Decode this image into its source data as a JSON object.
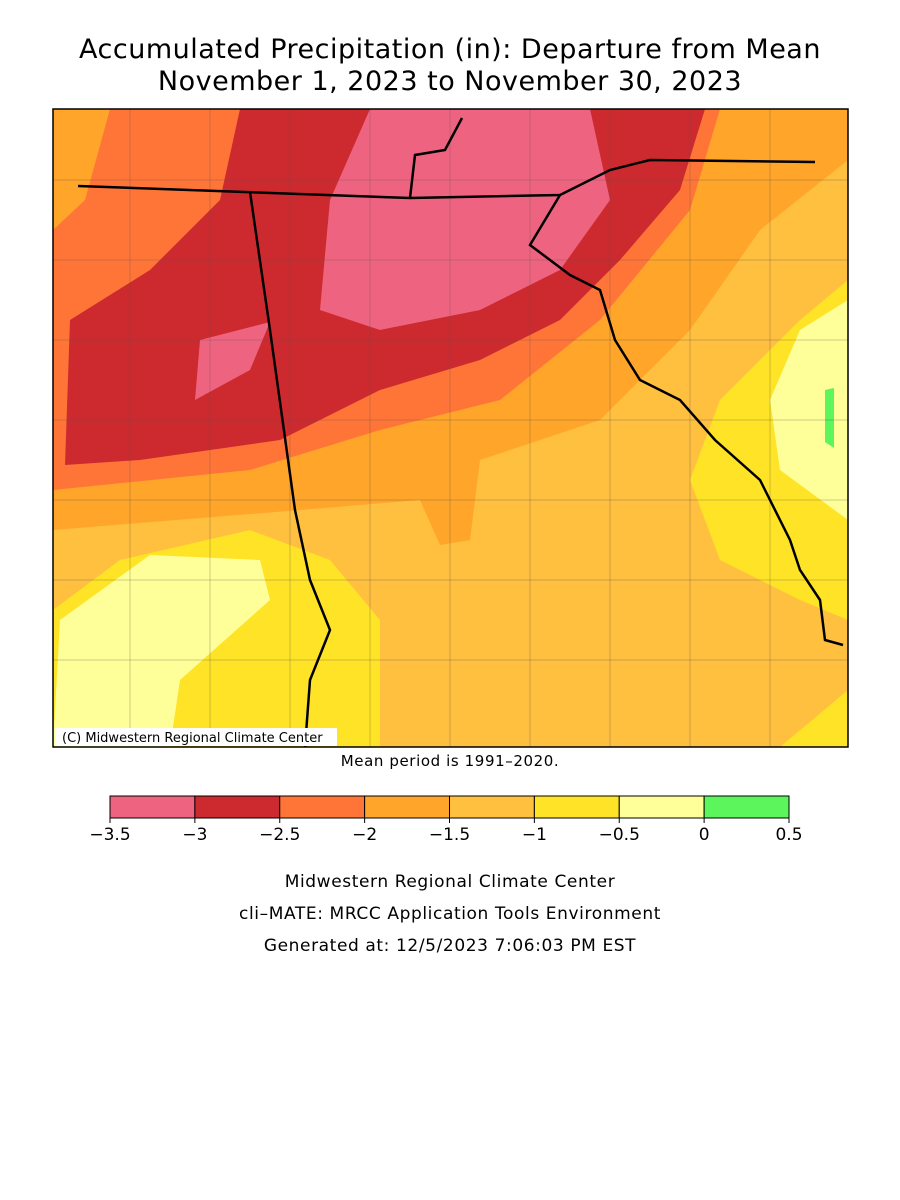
{
  "header": {
    "title_line1": "Accumulated Precipitation (in): Departure from Mean",
    "title_line2": "November 1, 2023 to November 30, 2023"
  },
  "map": {
    "credit": "(C) Midwestern Regional Climate Center",
    "note": "Mean period is 1991–2020."
  },
  "legend": {
    "ticks": [
      {
        "value": -3.5,
        "label": "−3.5"
      },
      {
        "value": -3,
        "label": "−3"
      },
      {
        "value": -2.5,
        "label": "−2.5"
      },
      {
        "value": -2,
        "label": "−2"
      },
      {
        "value": -1.5,
        "label": "−1.5"
      },
      {
        "value": -1,
        "label": "−1"
      },
      {
        "value": -0.5,
        "label": "−0.5"
      },
      0,
      0.5
    ],
    "colors": [
      "#ee6480",
      "#cc2a2e",
      "#ff7538",
      "#ffa52a",
      "#ffbf3f",
      "#ffe326",
      "#ffff99",
      "#5cf55c"
    ]
  },
  "footer": {
    "line1": "Midwestern Regional Climate Center",
    "line2": "cli–MATE: MRCC Application Tools Environment",
    "line3": "Generated at: 12/5/2023 7:06:03 PM EST"
  }
}
